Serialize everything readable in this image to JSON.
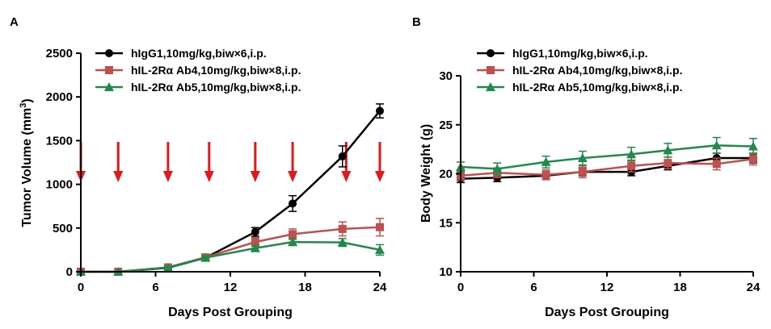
{
  "colors": {
    "igg": "#000000",
    "ab4": "#c0504d",
    "ab5": "#1f8a4c",
    "arrow": "#e3181b"
  },
  "legend": [
    {
      "label": "hIgG1,10mg/kg,biw×6,i.p.",
      "color": "#000000",
      "marker": "circle"
    },
    {
      "label": "hIL-2Rα Ab4,10mg/kg,biw×8,i.p.",
      "color": "#c0504d",
      "marker": "square"
    },
    {
      "label": "hIL-2Rα Ab5,10mg/kg,biw×8,i.p.",
      "color": "#1f8a4c",
      "marker": "triangle"
    }
  ],
  "chart_data": [
    {
      "panel": "A",
      "type": "line",
      "xlabel": "Days Post Grouping",
      "ylabel": "Tumor Volume (mm³)",
      "ylabel_main": "Tumor Volume (mm",
      "ylabel_sup": "3",
      "ylabel_close": ")",
      "xlim": [
        0,
        24
      ],
      "ylim": [
        0,
        2500
      ],
      "xticks": [
        0,
        6,
        12,
        18,
        24
      ],
      "yticks": [
        0,
        500,
        1000,
        1500,
        2000,
        2500
      ],
      "legend_position": "top-left",
      "dosing_days": [
        0,
        3,
        7,
        10.3,
        14,
        17,
        21.3,
        24
      ],
      "series": [
        {
          "name": "hIgG1,10mg/kg,biw×6,i.p.",
          "x": [
            0,
            3,
            7,
            10,
            14,
            17,
            21,
            24
          ],
          "y": [
            0,
            0,
            45,
            160,
            455,
            780,
            1320,
            1840
          ],
          "err": [
            0,
            0,
            10,
            20,
            50,
            90,
            120,
            80
          ]
        },
        {
          "name": "hIL-2Rα Ab4,10mg/kg,biw×8,i.p.",
          "x": [
            0,
            3,
            7,
            10,
            14,
            17,
            21,
            24
          ],
          "y": [
            0,
            0,
            50,
            165,
            340,
            430,
            490,
            510
          ],
          "err": [
            0,
            0,
            10,
            20,
            50,
            60,
            80,
            100
          ]
        },
        {
          "name": "hIL-2Rα Ab5,10mg/kg,biw×8,i.p.",
          "x": [
            0,
            3,
            7,
            10,
            14,
            17,
            21,
            24
          ],
          "y": [
            0,
            0,
            50,
            160,
            270,
            340,
            335,
            250
          ],
          "err": [
            0,
            0,
            10,
            20,
            30,
            40,
            45,
            60
          ]
        }
      ]
    },
    {
      "panel": "B",
      "type": "line",
      "xlabel": "Days Post Grouping",
      "ylabel": "Body Weight (g)",
      "xlim": [
        0,
        24
      ],
      "ylim": [
        10,
        30
      ],
      "xticks": [
        0,
        6,
        12,
        18,
        24
      ],
      "yticks": [
        10,
        15,
        20,
        25,
        30
      ],
      "legend_position": "top-left",
      "series": [
        {
          "name": "hIgG1,10mg/kg,biw×6,i.p.",
          "x": [
            0,
            3,
            7,
            10,
            14,
            17,
            21,
            24
          ],
          "y": [
            19.5,
            19.6,
            19.8,
            20.2,
            20.2,
            20.8,
            21.6,
            21.6
          ],
          "err": [
            0.4,
            0.4,
            0.4,
            0.4,
            0.4,
            0.4,
            0.5,
            0.5
          ]
        },
        {
          "name": "hIL-2Rα Ab4,10mg/kg,biw×8,i.p.",
          "x": [
            0,
            3,
            7,
            10,
            14,
            17,
            21,
            24
          ],
          "y": [
            19.8,
            20.1,
            19.9,
            20.2,
            20.8,
            21.1,
            21.0,
            21.5
          ],
          "err": [
            0.5,
            0.5,
            0.5,
            0.6,
            0.6,
            0.6,
            0.6,
            0.6
          ]
        },
        {
          "name": "hIL-2Rα Ab5,10mg/kg,biw×8,i.p.",
          "x": [
            0,
            3,
            7,
            10,
            14,
            17,
            21,
            24
          ],
          "y": [
            20.7,
            20.5,
            21.2,
            21.6,
            22.0,
            22.4,
            22.9,
            22.8
          ],
          "err": [
            0.5,
            0.6,
            0.6,
            0.7,
            0.7,
            0.7,
            0.8,
            0.8
          ]
        }
      ]
    }
  ]
}
